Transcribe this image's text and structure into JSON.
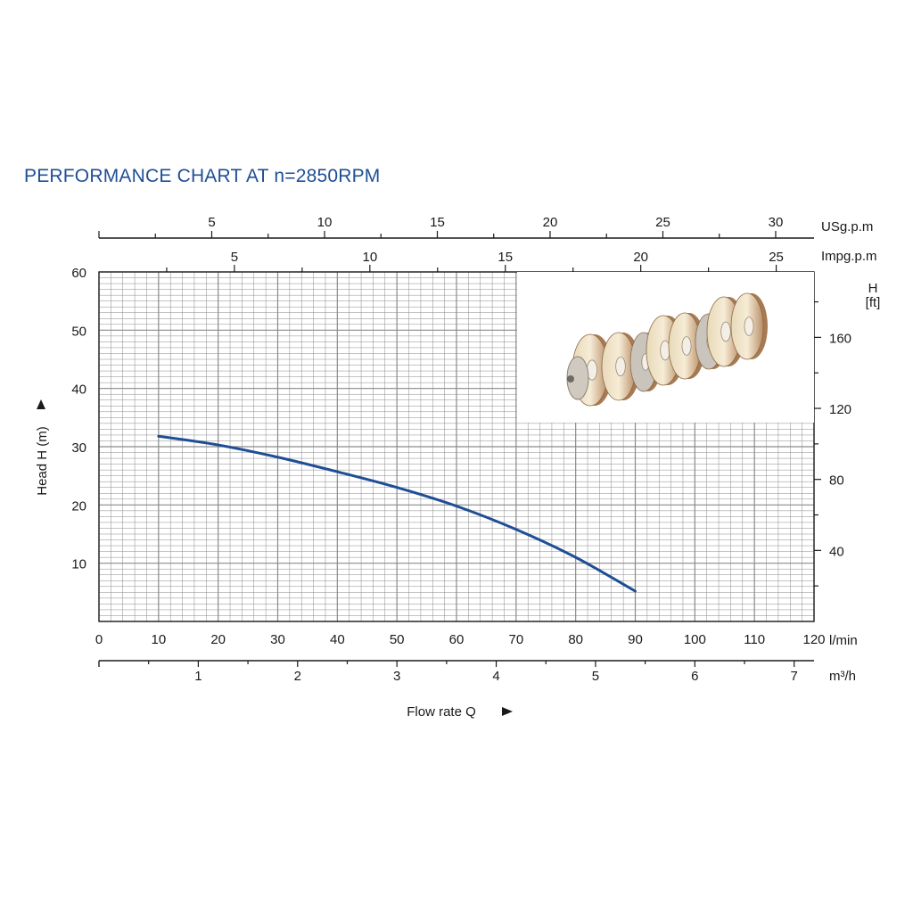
{
  "chart_data": {
    "type": "line",
    "title": "PERFORMANCE CHART AT n=2850RPM",
    "xlabel": "Flow rate Q",
    "ylabel": "Head H (m)",
    "x_unit": "l/min",
    "xlim": [
      0,
      120
    ],
    "ylim": [
      0,
      60
    ],
    "x_ticks": [
      0,
      10,
      20,
      30,
      40,
      50,
      60,
      70,
      80,
      90,
      100,
      110,
      120
    ],
    "y_ticks": [
      10,
      20,
      30,
      40,
      50,
      60
    ],
    "grid": true,
    "series": [
      {
        "x": [
          10,
          20,
          30,
          40,
          50,
          60,
          70,
          80,
          90
        ],
        "y": [
          31.8,
          30.3,
          28.2,
          25.7,
          23.0,
          19.8,
          15.8,
          11.0,
          5.2
        ]
      }
    ],
    "secondary_axes": {
      "top_usgpm": {
        "unit": "USg.p.m",
        "ticks": [
          5,
          10,
          15,
          20,
          25,
          30
        ]
      },
      "top_impgpm": {
        "unit": "Impg.p.m",
        "ticks": [
          5,
          10,
          15,
          20,
          25
        ]
      },
      "bottom_m3h": {
        "unit": "m³/h",
        "ticks": [
          1,
          2,
          3,
          4,
          5,
          6,
          7
        ]
      },
      "right_ft": {
        "unit_line1": "H",
        "unit_line2": "[ft]",
        "ticks": [
          40,
          80,
          120,
          160
        ]
      }
    },
    "colors": {
      "curve": "#1f4e96",
      "title": "#1f4e96",
      "grid": "#8a8a8a"
    }
  },
  "inset_image": {
    "icon": "pump-impeller-stack-icon"
  }
}
